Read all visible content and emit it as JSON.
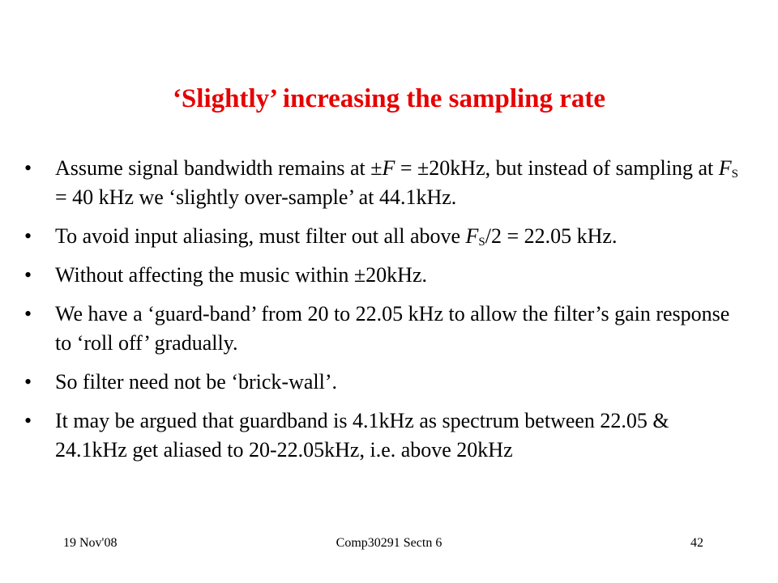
{
  "slide": {
    "title": "‘Slightly’ increasing the sampling rate",
    "bullet_glyph": "•",
    "bullets": [
      {
        "a": "Assume signal bandwidth remains at ±",
        "b": "F",
        "c": " = ±20kHz, but instead of sampling at ",
        "d": "F",
        "e": "S",
        "f": " = 40 kHz we ‘slightly over-sample’ at 44.1kHz."
      },
      {
        "a": "To avoid input aliasing, must filter out all above ",
        "b": "F",
        "c": "S",
        "d": "/2 = 22.05 kHz."
      },
      {
        "text": "Without affecting the music within ±20kHz."
      },
      {
        "text": "We have a ‘guard-band’ from 20 to 22.05 kHz to allow the filter’s gain response to ‘roll off’ gradually."
      },
      {
        "text": "So filter need not be ‘brick-wall’."
      },
      {
        "text": "It may be argued that guardband is 4.1kHz as spectrum between 22.05 & 24.1kHz get aliased to 20-22.05kHz, i.e. above 20kHz"
      }
    ]
  },
  "footer": {
    "date": "19 Nov'08",
    "course": "Comp30291 Sectn 6",
    "page": "42"
  },
  "colors": {
    "title": "#e60000",
    "text": "#000000",
    "background": "#ffffff"
  }
}
